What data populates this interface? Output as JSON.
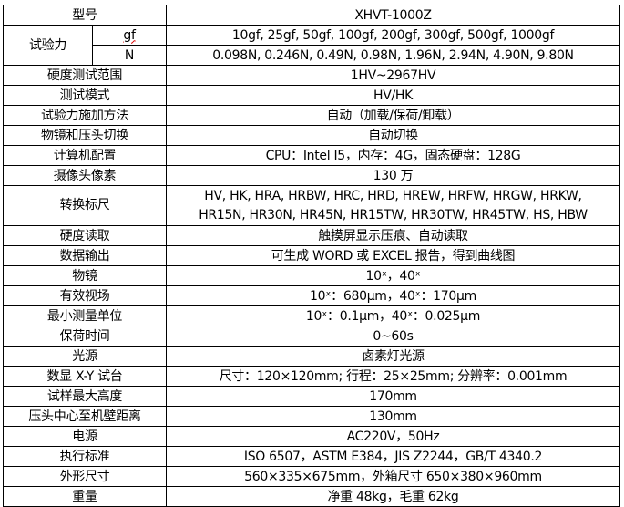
{
  "spec_table": {
    "model_label": "型号",
    "model_value": "XHVT-1000Z",
    "test_force_label": "试验力",
    "test_force_gf_unit": "gf",
    "test_force_gf_values": "10gf, 25gf, 50gf, 100gf, 200gf, 300gf, 500gf, 1000gf",
    "test_force_n_unit": "N",
    "test_force_n_values": "0.098N, 0.246N, 0.49N, 0.98N, 1.96N, 2.94N, 4.90N, 9.80N",
    "rows": [
      {
        "label": "硬度测试范围",
        "value": "1HV~2967HV"
      },
      {
        "label": "测试模式",
        "value": "HV/HK"
      },
      {
        "label": "试验力施加方法",
        "value": "自动（加载/保荷/卸载）"
      },
      {
        "label": "物镜和压头切换",
        "value": "自动切换"
      },
      {
        "label": "计算机配置",
        "value": "CPU：Intel I5，内存：4G，固态硬盘：128G"
      },
      {
        "label": "摄像头像素",
        "value": "130 万"
      },
      {
        "label": "转换标尺",
        "value": "HV, HK, HRA, HRBW, HRC, HRD, HREW, HRFW, HRGW, HRKW,",
        "value2": "HR15N, HR30N, HR45N, HR15TW, HR30TW, HR45TW, HS, HBW"
      },
      {
        "label": "硬度读取",
        "value": "触摸屏显示压痕、自动读取"
      },
      {
        "label": "数据输出",
        "value": "可生成 WORD 或 EXCEL 报告，得到曲线图"
      },
      {
        "label": "物镜",
        "value": "10ˣ，40ˣ"
      },
      {
        "label": "有效视场",
        "value": "10ˣ：680μm，40ˣ：170μm"
      },
      {
        "label": "最小测量单位",
        "value": "10ˣ：0.1μm，40ˣ：0.025μm"
      },
      {
        "label": "保荷时间",
        "value": "0~60s"
      },
      {
        "label": "光源",
        "value": "卤素灯光源"
      },
      {
        "label": "数显 X-Y 试台",
        "value": "尺寸：120×120mm; 行程：25×25mm; 分辨率：0.001mm"
      },
      {
        "label": "试样最大高度",
        "value": "170mm"
      },
      {
        "label": "压头中心至机壁距离",
        "value": "130mm"
      },
      {
        "label": "电源",
        "value": "AC220V，50Hz"
      },
      {
        "label": "执行标准",
        "value": "ISO 6507，ASTM E384，JIS Z2244，GB/T 4340.2"
      },
      {
        "label": "外形尺寸",
        "value": "560×335×675mm，外箱尺寸 650×380×960mm"
      },
      {
        "label": "重量",
        "value": "净重 48kg，毛重 62kg"
      }
    ]
  }
}
